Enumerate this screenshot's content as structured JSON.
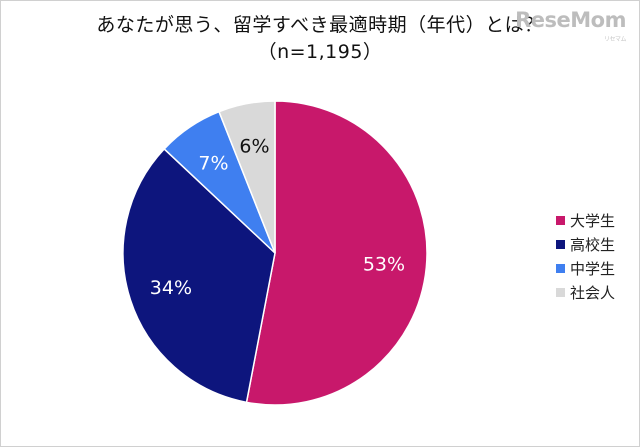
{
  "title": {
    "line1": "あなたが思う、留学すべき最適時期（年代）とは？",
    "line2": "（n=1,195）"
  },
  "watermark": {
    "text": "ReseMom",
    "subtext": "リセマム"
  },
  "chart_data": {
    "type": "pie",
    "title": "あなたが思う、留学すべき最適時期（年代）とは？（n=1,195）",
    "slices": [
      {
        "label": "大学生",
        "value": 53,
        "display": "53%",
        "color": "#c8186b",
        "label_color": "#ffffff"
      },
      {
        "label": "高校生",
        "value": 34,
        "display": "34%",
        "color": "#0d157d",
        "label_color": "#ffffff"
      },
      {
        "label": "中学生",
        "value": 7,
        "display": "7%",
        "color": "#3f7ff0",
        "label_color": "#ffffff"
      },
      {
        "label": "社会人",
        "value": 6,
        "display": "6%",
        "color": "#d9d9d9",
        "label_color": "#111111"
      }
    ],
    "start_angle": "12 o'clock",
    "direction": "clockwise",
    "legend_position": "right"
  }
}
